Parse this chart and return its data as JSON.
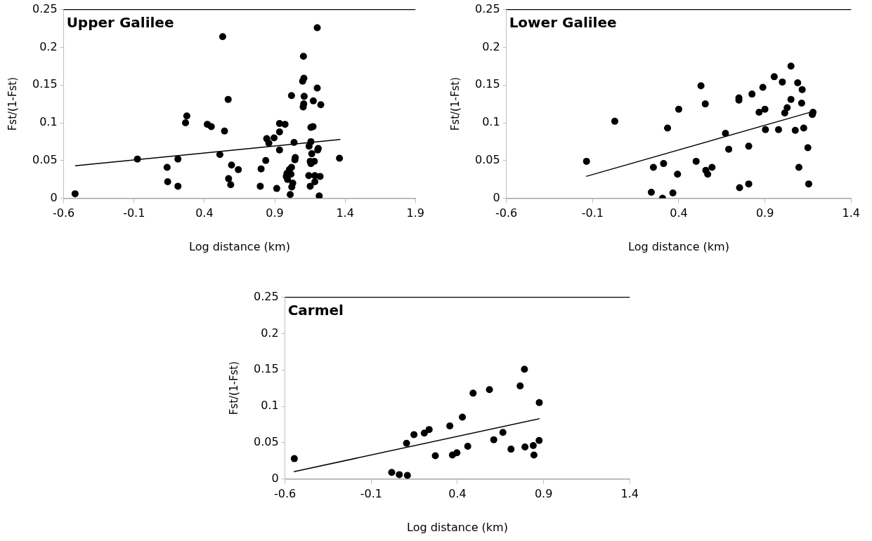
{
  "chart_data": [
    {
      "type": "scatter",
      "title": "Upper Galilee",
      "xlabel": "Log distance (km)",
      "ylabel": "Fst/(1-Fst)",
      "xlim": [
        -0.6,
        1.9
      ],
      "xticks": [
        -0.6,
        -0.1,
        0.4,
        0.9,
        1.4,
        1.9
      ],
      "ylim": [
        0,
        0.25
      ],
      "yticks": [
        0,
        0.05,
        0.1,
        0.15,
        0.2,
        0.25
      ],
      "marker": "circle",
      "series": [
        {
          "color": "#000000",
          "x": [
            -0.519,
            -0.076,
            0.135,
            0.139,
            0.212,
            0.212,
            0.275,
            0.266,
            0.421,
            0.449,
            0.53,
            0.51,
            0.543,
            0.569,
            0.593,
            0.641,
            0.572,
            0.587,
            0.797,
            0.803,
            0.836,
            0.843,
            0.858,
            0.895,
            0.934,
            0.934,
            0.973,
            0.934,
            0.914,
            1.019,
            1.037,
            1.046,
            1.043,
            1.01,
            1.028,
            1.021,
            1.019,
            1.004,
            0.987,
            0.982,
            0.991,
            1.015,
            1.104,
            1.107,
            1.098,
            1.109,
            1.106,
            1.102,
            1.202,
            1.202,
            1.174,
            1.227,
            1.157,
            1.172,
            1.157,
            1.144,
            1.163,
            1.209,
            1.205,
            1.152,
            1.181,
            1.157,
            1.142,
            1.185,
            1.222,
            1.185,
            1.152,
            1.216,
            1.36
          ],
          "values": [
            0.006,
            0.052,
            0.041,
            0.022,
            0.052,
            0.016,
            0.109,
            0.1,
            0.098,
            0.095,
            0.214,
            0.058,
            0.089,
            0.131,
            0.044,
            0.038,
            0.026,
            0.018,
            0.016,
            0.039,
            0.05,
            0.079,
            0.073,
            0.08,
            0.088,
            0.099,
            0.098,
            0.064,
            0.013,
            0.136,
            0.074,
            0.054,
            0.051,
            0.005,
            0.02,
            0.015,
            0.041,
            0.038,
            0.033,
            0.029,
            0.025,
            0.032,
            0.188,
            0.159,
            0.155,
            0.135,
            0.125,
            0.121,
            0.226,
            0.146,
            0.129,
            0.124,
            0.094,
            0.095,
            0.075,
            0.069,
            0.059,
            0.066,
            0.064,
            0.049,
            0.049,
            0.046,
            0.03,
            0.03,
            0.029,
            0.022,
            0.016,
            0.003,
            0.053
          ]
        },
        {
          "type": "line",
          "color": "#000000",
          "marker": "none",
          "x": [
            -0.519,
            1.366
          ],
          "values": [
            0.043,
            0.078
          ]
        }
      ]
    },
    {
      "type": "scatter",
      "title": "Lower Galilee",
      "xlabel": "Log distance (km)",
      "ylabel": "Fst/(1-Fst)",
      "xlim": [
        -0.6,
        1.4
      ],
      "xticks": [
        -0.6,
        -0.1,
        0.4,
        0.9,
        1.4
      ],
      "ylim": [
        0,
        0.25
      ],
      "yticks": [
        0,
        0.05,
        0.1,
        0.15,
        0.2,
        0.25
      ],
      "marker": "circle",
      "series": [
        {
          "color": "#000000",
          "x": [
            -0.135,
            0.029,
            0.241,
            0.253,
            0.312,
            0.306,
            0.366,
            0.335,
            0.393,
            0.4,
            0.501,
            0.529,
            0.554,
            0.557,
            0.568,
            0.593,
            0.671,
            0.69,
            0.749,
            0.749,
            0.753,
            0.806,
            0.806,
            0.825,
            0.866,
            0.9,
            0.888,
            0.903,
            0.954,
            0.979,
            1.001,
            1.015,
            1.029,
            1.051,
            1.051,
            1.076,
            1.09,
            1.113,
            1.116,
            1.125,
            1.097,
            1.149,
            1.154,
            1.179,
            1.175
          ],
          "values": [
            0.049,
            0.102,
            0.008,
            0.041,
            0.046,
            0.0,
            0.007,
            0.093,
            0.032,
            0.118,
            0.049,
            0.149,
            0.125,
            0.037,
            0.032,
            0.041,
            0.086,
            0.065,
            0.133,
            0.13,
            0.014,
            0.069,
            0.019,
            0.138,
            0.114,
            0.118,
            0.147,
            0.091,
            0.161,
            0.091,
            0.154,
            0.113,
            0.12,
            0.131,
            0.175,
            0.09,
            0.153,
            0.126,
            0.144,
            0.093,
            0.041,
            0.067,
            0.019,
            0.114,
            0.111
          ]
        },
        {
          "type": "line",
          "color": "#000000",
          "marker": "none",
          "x": [
            -0.137,
            1.179
          ],
          "values": [
            0.029,
            0.115
          ]
        }
      ]
    },
    {
      "type": "scatter",
      "title": "Carmel",
      "xlabel": "Log distance (km)",
      "ylabel": "Fst/(1-Fst)",
      "xlim": [
        -0.6,
        1.4
      ],
      "xticks": [
        -0.6,
        -0.1,
        0.4,
        0.9,
        1.4
      ],
      "ylim": [
        0,
        0.25
      ],
      "yticks": [
        0,
        0.05,
        0.1,
        0.15,
        0.2,
        0.25
      ],
      "marker": "circle",
      "series": [
        {
          "color": "#000000",
          "x": [
            -0.546,
            0.019,
            0.063,
            0.11,
            0.105,
            0.148,
            0.208,
            0.236,
            0.272,
            0.356,
            0.371,
            0.397,
            0.429,
            0.46,
            0.491,
            0.586,
            0.611,
            0.664,
            0.711,
            0.764,
            0.789,
            0.792,
            0.84,
            0.844,
            0.874,
            0.875
          ],
          "values": [
            0.028,
            0.009,
            0.006,
            0.005,
            0.049,
            0.061,
            0.063,
            0.068,
            0.032,
            0.073,
            0.033,
            0.036,
            0.085,
            0.045,
            0.118,
            0.123,
            0.054,
            0.064,
            0.041,
            0.128,
            0.151,
            0.044,
            0.046,
            0.033,
            0.053,
            0.105
          ]
        },
        {
          "type": "line",
          "color": "#000000",
          "marker": "none",
          "x": [
            -0.549,
            0.877
          ],
          "values": [
            0.01,
            0.083
          ]
        }
      ]
    }
  ]
}
